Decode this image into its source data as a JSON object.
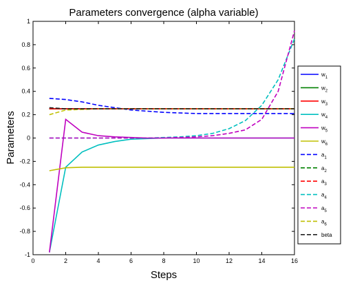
{
  "chart_data": {
    "type": "line",
    "title": "Parameters convergence (alpha variable)",
    "xlabel": "Steps",
    "ylabel": "Parameters",
    "xlim": [
      0,
      16
    ],
    "ylim": [
      -1,
      1
    ],
    "xticks": [
      "0",
      "2",
      "4",
      "6",
      "8",
      "10",
      "12",
      "14",
      "16"
    ],
    "yticks": [
      "-1",
      "-0.8",
      "-0.6",
      "-0.4",
      "-0.2",
      "0",
      "0.2",
      "0.4",
      "0.6",
      "0.8",
      "1"
    ],
    "grid": false,
    "legend_position": "right",
    "x": [
      1,
      2,
      3,
      4,
      5,
      6,
      7,
      8,
      9,
      10,
      11,
      12,
      13,
      14,
      15,
      16
    ],
    "series": [
      {
        "name": "w",
        "sub": "1",
        "color": "#0000ff",
        "style": "solid",
        "values": [
          0.25,
          0.25,
          0.25,
          0.25,
          0.25,
          0.25,
          0.25,
          0.25,
          0.25,
          0.25,
          0.25,
          0.25,
          0.25,
          0.25,
          0.25,
          0.25
        ]
      },
      {
        "name": "w",
        "sub": "2",
        "color": "#008000",
        "style": "solid",
        "values": [
          0.25,
          0.25,
          0.25,
          0.25,
          0.25,
          0.25,
          0.25,
          0.25,
          0.25,
          0.25,
          0.25,
          0.25,
          0.25,
          0.25,
          0.25,
          0.25
        ]
      },
      {
        "name": "w",
        "sub": "3",
        "color": "#ff0000",
        "style": "solid",
        "values": [
          0.25,
          0.25,
          0.25,
          0.25,
          0.25,
          0.25,
          0.25,
          0.25,
          0.25,
          0.25,
          0.25,
          0.25,
          0.25,
          0.25,
          0.25,
          0.25
        ]
      },
      {
        "name": "w",
        "sub": "4",
        "color": "#00bfbf",
        "style": "solid",
        "values": [
          -0.98,
          -0.25,
          -0.12,
          -0.06,
          -0.03,
          -0.01,
          -0.005,
          0,
          0,
          0,
          0,
          0,
          0,
          0,
          0,
          0
        ]
      },
      {
        "name": "w",
        "sub": "5",
        "color": "#bf00bf",
        "style": "solid",
        "values": [
          -0.98,
          0.16,
          0.05,
          0.02,
          0.01,
          0.005,
          0,
          0,
          0,
          0,
          0,
          0,
          0,
          0,
          0,
          0
        ]
      },
      {
        "name": "w",
        "sub": "6",
        "color": "#bfbf00",
        "style": "solid",
        "values": [
          -0.28,
          -0.255,
          -0.25,
          -0.25,
          -0.25,
          -0.25,
          -0.25,
          -0.25,
          -0.25,
          -0.25,
          -0.25,
          -0.25,
          -0.25,
          -0.25,
          -0.25,
          -0.25
        ]
      },
      {
        "name": "a",
        "sub": "1",
        "color": "#0000ff",
        "style": "dashed",
        "values": [
          0.34,
          0.33,
          0.31,
          0.28,
          0.26,
          0.24,
          0.23,
          0.22,
          0.215,
          0.21,
          0.21,
          0.21,
          0.21,
          0.21,
          0.21,
          0.21
        ]
      },
      {
        "name": "a",
        "sub": "2",
        "color": "#008000",
        "style": "dashed",
        "values": [
          0.25,
          0.25,
          0.25,
          0.25,
          0.25,
          0.25,
          0.25,
          0.25,
          0.25,
          0.25,
          0.25,
          0.25,
          0.25,
          0.25,
          0.25,
          0.25
        ]
      },
      {
        "name": "a",
        "sub": "3",
        "color": "#ff0000",
        "style": "dashed",
        "values": [
          0.25,
          0.25,
          0.25,
          0.25,
          0.25,
          0.25,
          0.25,
          0.25,
          0.25,
          0.25,
          0.25,
          0.25,
          0.25,
          0.25,
          0.25,
          0.25
        ]
      },
      {
        "name": "a",
        "sub": "4",
        "color": "#00bfbf",
        "style": "dashed",
        "values": [
          0,
          0,
          0,
          0,
          0,
          0,
          0,
          0.005,
          0.01,
          0.02,
          0.04,
          0.08,
          0.15,
          0.28,
          0.5,
          0.85
        ]
      },
      {
        "name": "a",
        "sub": "5",
        "color": "#bf00bf",
        "style": "dashed",
        "values": [
          0,
          0,
          0,
          0,
          0,
          0,
          0,
          0,
          0.005,
          0.01,
          0.02,
          0.04,
          0.07,
          0.16,
          0.4,
          0.92
        ]
      },
      {
        "name": "a",
        "sub": "6",
        "color": "#bfbf00",
        "style": "dashed",
        "values": [
          0.2,
          0.24,
          0.245,
          0.25,
          0.25,
          0.25,
          0.25,
          0.25,
          0.25,
          0.25,
          0.25,
          0.25,
          0.25,
          0.25,
          0.25,
          0.25
        ]
      },
      {
        "name": "beta",
        "sub": "",
        "color": "#222222",
        "style": "dashed",
        "values": [
          0.26,
          0.25,
          0.25,
          0.25,
          0.25,
          0.25,
          0.25,
          0.25,
          0.25,
          0.25,
          0.25,
          0.25,
          0.25,
          0.25,
          0.25,
          0.25
        ]
      }
    ]
  }
}
